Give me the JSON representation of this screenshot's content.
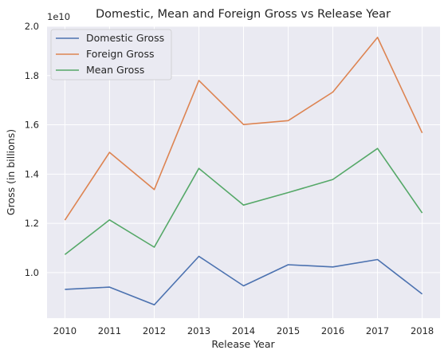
{
  "chart_data": {
    "type": "line",
    "title": "Domestic, Mean and Foreign Gross vs Release Year",
    "xlabel": "Release Year",
    "ylabel": "Gross (in billions)",
    "y_offset_label": "1e10",
    "x": [
      2010,
      2011,
      2012,
      2013,
      2014,
      2015,
      2016,
      2017,
      2018
    ],
    "xticks": [
      "2010",
      "2011",
      "2012",
      "2013",
      "2014",
      "2015",
      "2016",
      "2017",
      "2018"
    ],
    "xlim": [
      2009.6,
      2018.4
    ],
    "yticks": [
      "1.0",
      "1.2",
      "1.4",
      "1.6",
      "1.8",
      "2.0"
    ],
    "ytick_values": [
      1.0,
      1.2,
      1.4,
      1.6,
      1.8,
      2.0
    ],
    "ylim": [
      0.815,
      2.0
    ],
    "y_unit_multiplier": 10000000000.0,
    "grid": true,
    "legend_position": "top-left",
    "series": [
      {
        "name": "Domestic Gross",
        "color": "#4c72b0",
        "values": [
          0.932,
          0.941,
          0.869,
          1.066,
          0.946,
          1.032,
          1.023,
          1.053,
          0.913
        ]
      },
      {
        "name": "Foreign Gross",
        "color": "#dd8452",
        "values": [
          1.213,
          1.488,
          1.337,
          1.78,
          1.601,
          1.617,
          1.733,
          1.955,
          1.567
        ]
      },
      {
        "name": "Mean Gross",
        "color": "#55a868",
        "values": [
          1.073,
          1.214,
          1.103,
          1.423,
          1.274,
          1.325,
          1.378,
          1.504,
          1.242
        ]
      }
    ]
  }
}
